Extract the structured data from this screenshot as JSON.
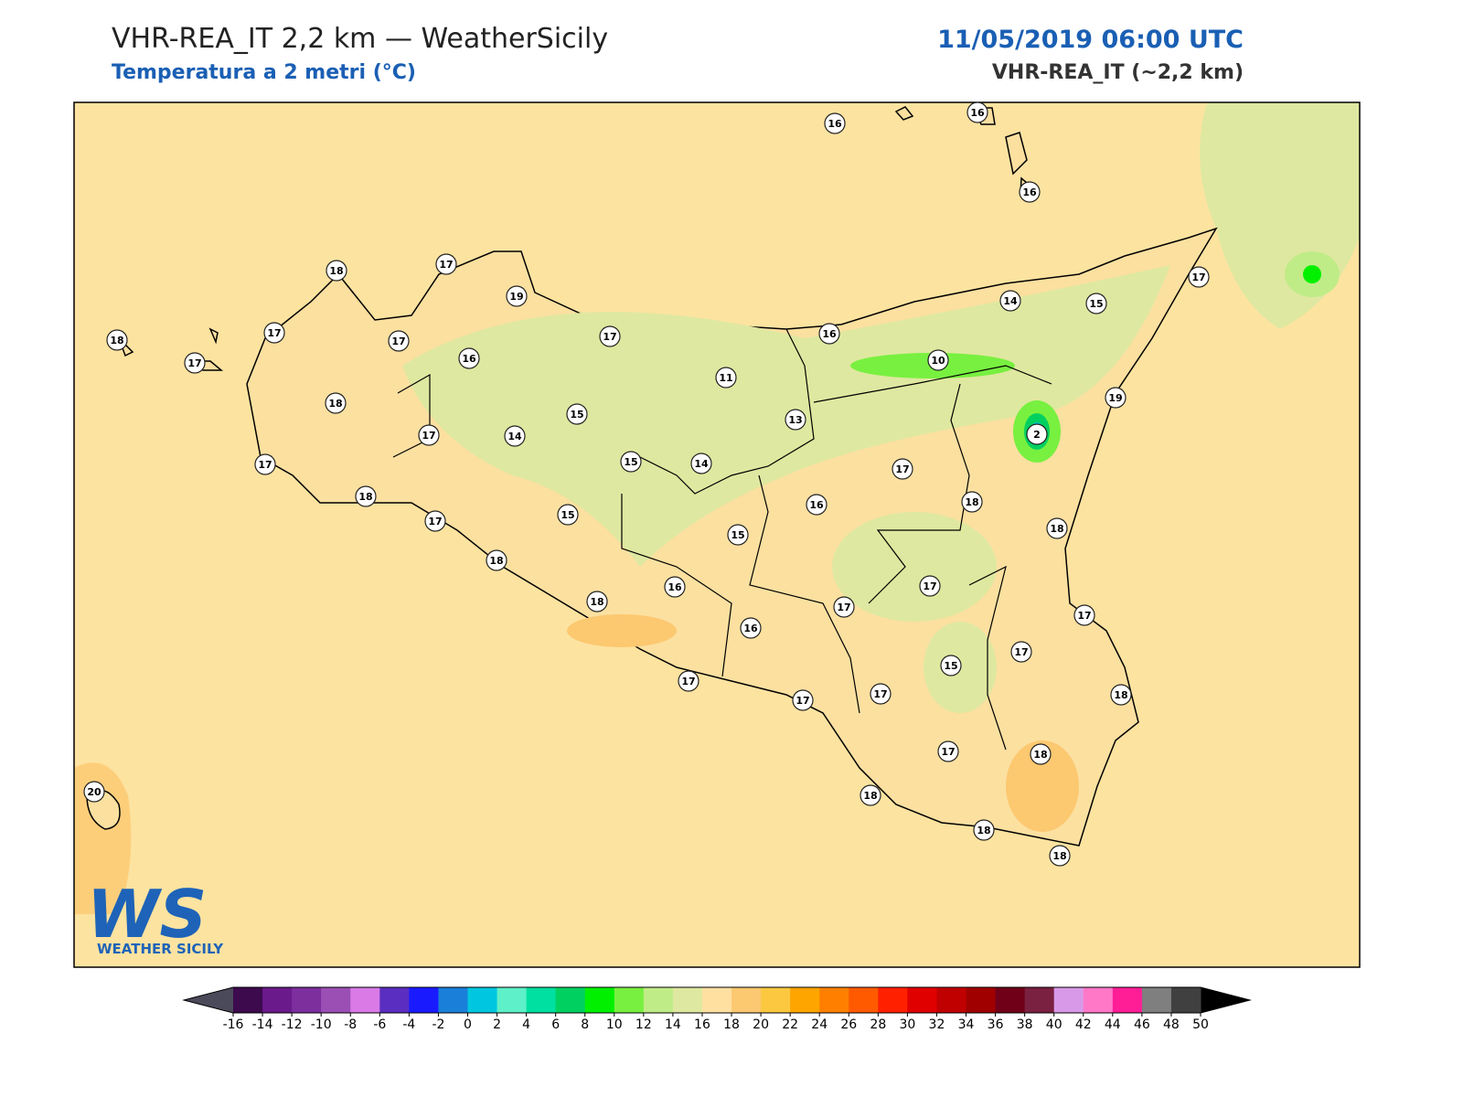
{
  "header": {
    "title": "VHR-REA_IT 2,2 km — WeatherSicily",
    "subtitle": "Temperatura a 2 metri (°C)",
    "datetime": "11/05/2019 06:00 UTC",
    "model": "VHR-REA_IT (~2,2 km)"
  },
  "logo": {
    "mark": "WS",
    "text": "WEATHER SICILY"
  },
  "stations": {
    "values": [
      16,
      16,
      16,
      18,
      17,
      19,
      17,
      18,
      17,
      17,
      17,
      16,
      17,
      16,
      14,
      15,
      11,
      10,
      18,
      15,
      13,
      19,
      2,
      17,
      14,
      15,
      14,
      17,
      17,
      18,
      16,
      18,
      17,
      15,
      15,
      18,
      18,
      16,
      17,
      18,
      17,
      17,
      16,
      17,
      15,
      17,
      17,
      17,
      18,
      17,
      18,
      20,
      18,
      18,
      18
    ]
  },
  "colorbar": {
    "ticks": [
      -16,
      -14,
      -12,
      -10,
      -8,
      -6,
      -4,
      -2,
      0,
      2,
      4,
      6,
      8,
      10,
      12,
      14,
      16,
      18,
      20,
      22,
      24,
      26,
      28,
      30,
      32,
      34,
      36,
      38,
      40,
      42,
      44,
      46,
      48,
      50
    ],
    "colors": [
      "#3d0a4d",
      "#6a1a8a",
      "#7d2f9e",
      "#9b4fb5",
      "#d97ae6",
      "#5a2ec0",
      "#1a1aff",
      "#1a7fd9",
      "#00c6e0",
      "#5ef0c8",
      "#00e0a0",
      "#00d060",
      "#00f000",
      "#78f040",
      "#c0ec88",
      "#dfe8a0",
      "#ffe0a0",
      "#fcc870",
      "#fcc840",
      "#ffa500",
      "#ff8000",
      "#ff5a00",
      "#ff2000",
      "#e00000",
      "#c00000",
      "#a00000",
      "#700018",
      "#7a2040",
      "#d89ae8",
      "#ff78c8",
      "#ff1e96",
      "#7f7f7f",
      "#404040"
    ],
    "under_color": "#4a4a5a",
    "over_color": "#000000"
  }
}
